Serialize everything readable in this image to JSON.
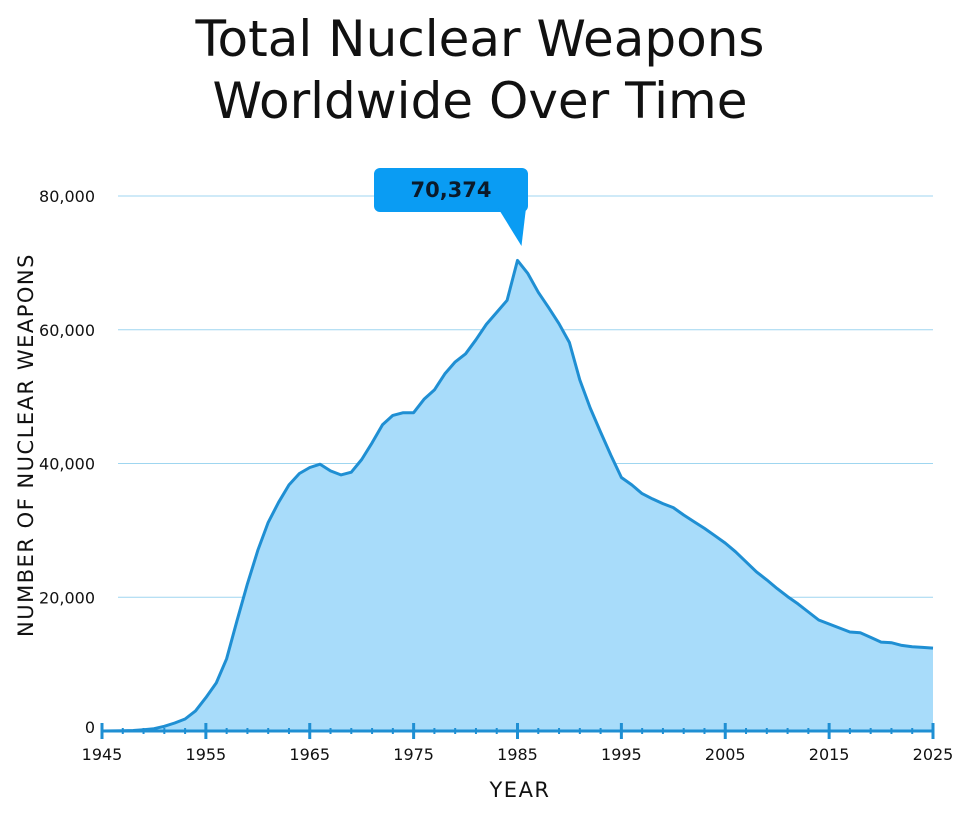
{
  "title_line1": "Total Nuclear Weapons",
  "title_line2": "Worldwide Over Time",
  "chart_data": {
    "type": "area",
    "title": "Total Nuclear Weapons Worldwide Over Time",
    "xlabel": "YEAR",
    "ylabel": "NUMBER OF NUCLEAR WEAPONS",
    "xlim": [
      1945,
      2025
    ],
    "ylim": [
      0,
      80000
    ],
    "x_ticks": [
      "1945",
      "1955",
      "1965",
      "1975",
      "1985",
      "1995",
      "2005",
      "2015",
      "2025"
    ],
    "y_ticks": [
      "0",
      "20,000",
      "40,000",
      "60,000",
      "80,000"
    ],
    "grid": "horizontal",
    "annotation": {
      "label": "70,374",
      "x": 1986,
      "y": 70374
    },
    "colors": {
      "fill": "#a8dcfa",
      "line": "#1f8fd3",
      "grid": "#9fd6f0",
      "axis": "#1f8fd3",
      "callout": "#0a9cf3"
    },
    "x": [
      1945,
      1946,
      1947,
      1948,
      1949,
      1950,
      1951,
      1952,
      1953,
      1954,
      1955,
      1956,
      1957,
      1958,
      1959,
      1960,
      1961,
      1962,
      1963,
      1964,
      1965,
      1966,
      1967,
      1968,
      1969,
      1970,
      1971,
      1972,
      1973,
      1974,
      1975,
      1976,
      1977,
      1978,
      1979,
      1980,
      1981,
      1982,
      1983,
      1984,
      1985,
      1986,
      1987,
      1988,
      1989,
      1990,
      1991,
      1992,
      1993,
      1994,
      1995,
      1996,
      1997,
      1998,
      1999,
      2000,
      2001,
      2002,
      2003,
      2004,
      2005,
      2006,
      2007,
      2008,
      2009,
      2010,
      2011,
      2012,
      2013,
      2014,
      2015,
      2016,
      2017,
      2018,
      2019,
      2020,
      2021,
      2022,
      2023,
      2024,
      2025
    ],
    "values": [
      0,
      10,
      30,
      80,
      200,
      350,
      700,
      1200,
      1800,
      3000,
      5000,
      7200,
      10800,
      16500,
      22000,
      27000,
      31200,
      34200,
      36800,
      38500,
      39400,
      39900,
      38900,
      38300,
      38700,
      40600,
      43100,
      45800,
      47200,
      47600,
      47600,
      49600,
      51000,
      53400,
      55200,
      56400,
      58500,
      60800,
      62600,
      64400,
      70374,
      68400,
      65600,
      63300,
      60900,
      58100,
      52500,
      48300,
      44700,
      41200,
      37900,
      36800,
      35500,
      34700,
      34000,
      33400,
      32300,
      31300,
      30300,
      29200,
      28100,
      26800,
      25300,
      23800,
      22600,
      21300,
      20100,
      19000,
      17800,
      16600,
      16000,
      15400,
      14800,
      14700,
      14000,
      13300,
      13200,
      12800,
      12600,
      12500,
      12400
    ]
  }
}
